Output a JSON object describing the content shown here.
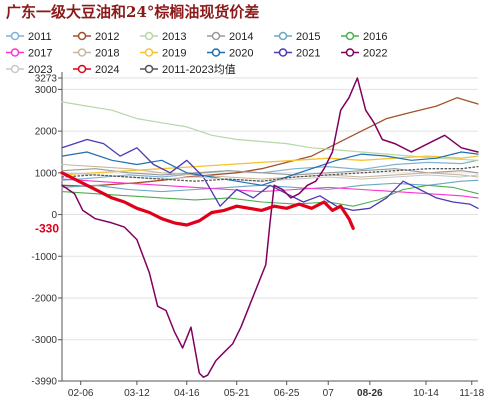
{
  "chart_data": {
    "type": "line",
    "title": "广东一级大豆油和24°棕榈油现货价差",
    "xlabel": "",
    "ylabel": "",
    "ylim": [
      -3990,
      3273
    ],
    "grid": true,
    "legend_placement": "top",
    "x_categories": [
      "02-06",
      "03-12",
      "04-16",
      "05-21",
      "06-25",
      "07",
      "08-26",
      "10-14",
      "11-18"
    ],
    "x_range": [
      0,
      100
    ],
    "y_ticks": [
      3273,
      3000,
      2000,
      1000,
      0,
      -1000,
      -2000,
      -3000,
      -3990
    ],
    "highlight_x_label": "08-26",
    "callout_value": "-330",
    "series": [
      {
        "name": "2011",
        "color": "#7fb2d6",
        "style": "solid",
        "width": 1.2,
        "points": [
          [
            0,
            820
          ],
          [
            8,
            880
          ],
          [
            16,
            950
          ],
          [
            24,
            900
          ],
          [
            32,
            980
          ],
          [
            40,
            1050
          ],
          [
            48,
            1000
          ],
          [
            56,
            1100
          ],
          [
            64,
            1150
          ],
          [
            72,
            1080
          ],
          [
            80,
            1200
          ],
          [
            88,
            1250
          ],
          [
            96,
            1220
          ],
          [
            100,
            1300
          ]
        ]
      },
      {
        "name": "2012",
        "color": "#a0522d",
        "style": "solid",
        "width": 1.3,
        "points": [
          [
            0,
            700
          ],
          [
            6,
            680
          ],
          [
            12,
            720
          ],
          [
            18,
            760
          ],
          [
            24,
            820
          ],
          [
            30,
            900
          ],
          [
            36,
            950
          ],
          [
            42,
            1000
          ],
          [
            48,
            1100
          ],
          [
            54,
            1250
          ],
          [
            60,
            1400
          ],
          [
            66,
            1700
          ],
          [
            72,
            2000
          ],
          [
            78,
            2300
          ],
          [
            84,
            2450
          ],
          [
            90,
            2600
          ],
          [
            95,
            2800
          ],
          [
            100,
            2650
          ]
        ]
      },
      {
        "name": "2013",
        "color": "#b7d7a8",
        "style": "solid",
        "width": 1.2,
        "points": [
          [
            0,
            2700
          ],
          [
            6,
            2600
          ],
          [
            12,
            2500
          ],
          [
            18,
            2300
          ],
          [
            24,
            2200
          ],
          [
            30,
            2100
          ],
          [
            36,
            1900
          ],
          [
            42,
            1800
          ],
          [
            48,
            1750
          ],
          [
            54,
            1700
          ],
          [
            60,
            1600
          ],
          [
            66,
            1550
          ],
          [
            72,
            1500
          ],
          [
            78,
            1450
          ],
          [
            84,
            1400
          ],
          [
            90,
            1350
          ],
          [
            100,
            1300
          ]
        ]
      },
      {
        "name": "2014",
        "color": "#9a9a9a",
        "style": "solid",
        "width": 1.1,
        "points": [
          [
            0,
            1050
          ],
          [
            8,
            1100
          ],
          [
            16,
            1000
          ],
          [
            24,
            950
          ],
          [
            32,
            1000
          ],
          [
            40,
            1050
          ],
          [
            48,
            1000
          ],
          [
            56,
            950
          ],
          [
            64,
            1000
          ],
          [
            72,
            1050
          ],
          [
            80,
            1100
          ],
          [
            88,
            1000
          ],
          [
            96,
            1050
          ],
          [
            100,
            1000
          ]
        ]
      },
      {
        "name": "2015",
        "color": "#6aa8c4",
        "style": "solid",
        "width": 1.1,
        "points": [
          [
            0,
            650
          ],
          [
            8,
            700
          ],
          [
            16,
            600
          ],
          [
            24,
            550
          ],
          [
            32,
            600
          ],
          [
            40,
            650
          ],
          [
            48,
            700
          ],
          [
            56,
            650
          ],
          [
            64,
            600
          ],
          [
            72,
            700
          ],
          [
            80,
            750
          ],
          [
            88,
            700
          ],
          [
            96,
            800
          ],
          [
            100,
            820
          ]
        ]
      },
      {
        "name": "2016",
        "color": "#4caf50",
        "style": "solid",
        "width": 1.1,
        "points": [
          [
            0,
            550
          ],
          [
            8,
            500
          ],
          [
            16,
            450
          ],
          [
            24,
            400
          ],
          [
            32,
            350
          ],
          [
            40,
            400
          ],
          [
            48,
            300
          ],
          [
            56,
            250
          ],
          [
            64,
            300
          ],
          [
            70,
            200
          ],
          [
            76,
            350
          ],
          [
            82,
            600
          ],
          [
            88,
            700
          ],
          [
            94,
            650
          ],
          [
            100,
            500
          ]
        ]
      },
      {
        "name": "2017",
        "color": "#ff33cc",
        "style": "solid",
        "width": 1.1,
        "points": [
          [
            0,
            850
          ],
          [
            8,
            800
          ],
          [
            16,
            750
          ],
          [
            24,
            700
          ],
          [
            32,
            650
          ],
          [
            40,
            600
          ],
          [
            48,
            550
          ],
          [
            56,
            600
          ],
          [
            64,
            650
          ],
          [
            72,
            600
          ],
          [
            80,
            550
          ],
          [
            88,
            500
          ],
          [
            96,
            450
          ],
          [
            100,
            400
          ]
        ]
      },
      {
        "name": "2018",
        "color": "#c9b79c",
        "style": "solid",
        "width": 1.1,
        "points": [
          [
            0,
            1200
          ],
          [
            8,
            1150
          ],
          [
            16,
            1100
          ],
          [
            24,
            1000
          ],
          [
            32,
            950
          ],
          [
            40,
            900
          ],
          [
            48,
            850
          ],
          [
            56,
            900
          ],
          [
            64,
            950
          ],
          [
            72,
            900
          ],
          [
            80,
            950
          ],
          [
            88,
            1000
          ],
          [
            96,
            950
          ],
          [
            100,
            900
          ]
        ]
      },
      {
        "name": "2019",
        "color": "#f4c430",
        "style": "solid",
        "width": 1.3,
        "points": [
          [
            0,
            950
          ],
          [
            8,
            1000
          ],
          [
            16,
            1050
          ],
          [
            24,
            1100
          ],
          [
            32,
            1150
          ],
          [
            40,
            1200
          ],
          [
            48,
            1250
          ],
          [
            56,
            1300
          ],
          [
            64,
            1350
          ],
          [
            72,
            1300
          ],
          [
            80,
            1350
          ],
          [
            88,
            1400
          ],
          [
            96,
            1350
          ],
          [
            100,
            1400
          ]
        ]
      },
      {
        "name": "2020",
        "color": "#1f6fb2",
        "style": "solid",
        "width": 1.2,
        "points": [
          [
            0,
            1400
          ],
          [
            6,
            1500
          ],
          [
            12,
            1300
          ],
          [
            18,
            1200
          ],
          [
            24,
            1300
          ],
          [
            30,
            1000
          ],
          [
            36,
            900
          ],
          [
            42,
            800
          ],
          [
            48,
            700
          ],
          [
            54,
            900
          ],
          [
            60,
            1100
          ],
          [
            66,
            1300
          ],
          [
            72,
            1450
          ],
          [
            78,
            1400
          ],
          [
            84,
            1300
          ],
          [
            90,
            1350
          ],
          [
            96,
            1500
          ],
          [
            100,
            1450
          ]
        ]
      },
      {
        "name": "2021",
        "color": "#4b3ab5",
        "style": "solid",
        "width": 1.3,
        "points": [
          [
            0,
            1600
          ],
          [
            6,
            1800
          ],
          [
            10,
            1700
          ],
          [
            14,
            1400
          ],
          [
            18,
            1600
          ],
          [
            22,
            1200
          ],
          [
            26,
            1000
          ],
          [
            30,
            1300
          ],
          [
            34,
            900
          ],
          [
            38,
            200
          ],
          [
            42,
            600
          ],
          [
            46,
            400
          ],
          [
            50,
            700
          ],
          [
            54,
            500
          ],
          [
            58,
            300
          ],
          [
            62,
            450
          ],
          [
            66,
            200
          ],
          [
            70,
            100
          ],
          [
            74,
            150
          ],
          [
            78,
            400
          ],
          [
            82,
            800
          ],
          [
            86,
            600
          ],
          [
            90,
            400
          ],
          [
            94,
            300
          ],
          [
            98,
            250
          ],
          [
            100,
            150
          ]
        ]
      },
      {
        "name": "2022",
        "color": "#800060",
        "style": "solid",
        "width": 1.5,
        "points": [
          [
            0,
            700
          ],
          [
            3,
            500
          ],
          [
            5,
            100
          ],
          [
            8,
            -100
          ],
          [
            12,
            -200
          ],
          [
            15,
            -300
          ],
          [
            18,
            -600
          ],
          [
            21,
            -1400
          ],
          [
            23,
            -2200
          ],
          [
            25,
            -2300
          ],
          [
            27,
            -2800
          ],
          [
            29,
            -3200
          ],
          [
            31,
            -2700
          ],
          [
            33,
            -3800
          ],
          [
            34,
            -3900
          ],
          [
            35,
            -3850
          ],
          [
            37,
            -3500
          ],
          [
            39,
            -3300
          ],
          [
            41,
            -3100
          ],
          [
            43,
            -2700
          ],
          [
            45,
            -2200
          ],
          [
            47,
            -1700
          ],
          [
            49,
            -1200
          ],
          [
            50,
            -200
          ],
          [
            51,
            700
          ],
          [
            53,
            600
          ],
          [
            55,
            400
          ],
          [
            57,
            500
          ],
          [
            59,
            700
          ],
          [
            61,
            800
          ],
          [
            63,
            1100
          ],
          [
            65,
            1500
          ],
          [
            67,
            2500
          ],
          [
            69,
            2800
          ],
          [
            71,
            3273
          ],
          [
            73,
            2500
          ],
          [
            75,
            2200
          ],
          [
            77,
            1800
          ],
          [
            80,
            1700
          ],
          [
            84,
            1500
          ],
          [
            88,
            1700
          ],
          [
            92,
            1900
          ],
          [
            96,
            1600
          ],
          [
            100,
            1500
          ]
        ]
      },
      {
        "name": "2023",
        "color": "#c8c8c8",
        "style": "solid",
        "width": 1.1,
        "points": [
          [
            0,
            1000
          ],
          [
            8,
            950
          ],
          [
            16,
            900
          ],
          [
            24,
            850
          ],
          [
            32,
            900
          ],
          [
            40,
            850
          ],
          [
            48,
            800
          ],
          [
            56,
            850
          ],
          [
            64,
            900
          ],
          [
            72,
            850
          ],
          [
            80,
            900
          ],
          [
            88,
            950
          ],
          [
            96,
            900
          ],
          [
            100,
            950
          ]
        ]
      },
      {
        "name": "2024",
        "color": "#e0001a",
        "style": "solid",
        "width": 3.2,
        "points": [
          [
            0,
            1000
          ],
          [
            3,
            850
          ],
          [
            6,
            700
          ],
          [
            9,
            550
          ],
          [
            12,
            400
          ],
          [
            15,
            300
          ],
          [
            18,
            150
          ],
          [
            21,
            50
          ],
          [
            24,
            -100
          ],
          [
            27,
            -200
          ],
          [
            30,
            -250
          ],
          [
            33,
            -150
          ],
          [
            36,
            50
          ],
          [
            39,
            100
          ],
          [
            42,
            200
          ],
          [
            45,
            150
          ],
          [
            48,
            100
          ],
          [
            51,
            200
          ],
          [
            54,
            150
          ],
          [
            57,
            250
          ],
          [
            60,
            150
          ],
          [
            63,
            300
          ],
          [
            65,
            100
          ],
          [
            67,
            200
          ],
          [
            69,
            -100
          ],
          [
            70,
            -330
          ]
        ]
      },
      {
        "name": "2011-2023均值",
        "color": "#555555",
        "style": "dotted",
        "width": 1.3,
        "points": [
          [
            0,
            900
          ],
          [
            8,
            950
          ],
          [
            16,
            900
          ],
          [
            24,
            850
          ],
          [
            32,
            800
          ],
          [
            40,
            850
          ],
          [
            48,
            800
          ],
          [
            56,
            900
          ],
          [
            64,
            950
          ],
          [
            72,
            1000
          ],
          [
            80,
            1050
          ],
          [
            88,
            1100
          ],
          [
            96,
            1100
          ],
          [
            100,
            1150
          ]
        ]
      }
    ]
  }
}
